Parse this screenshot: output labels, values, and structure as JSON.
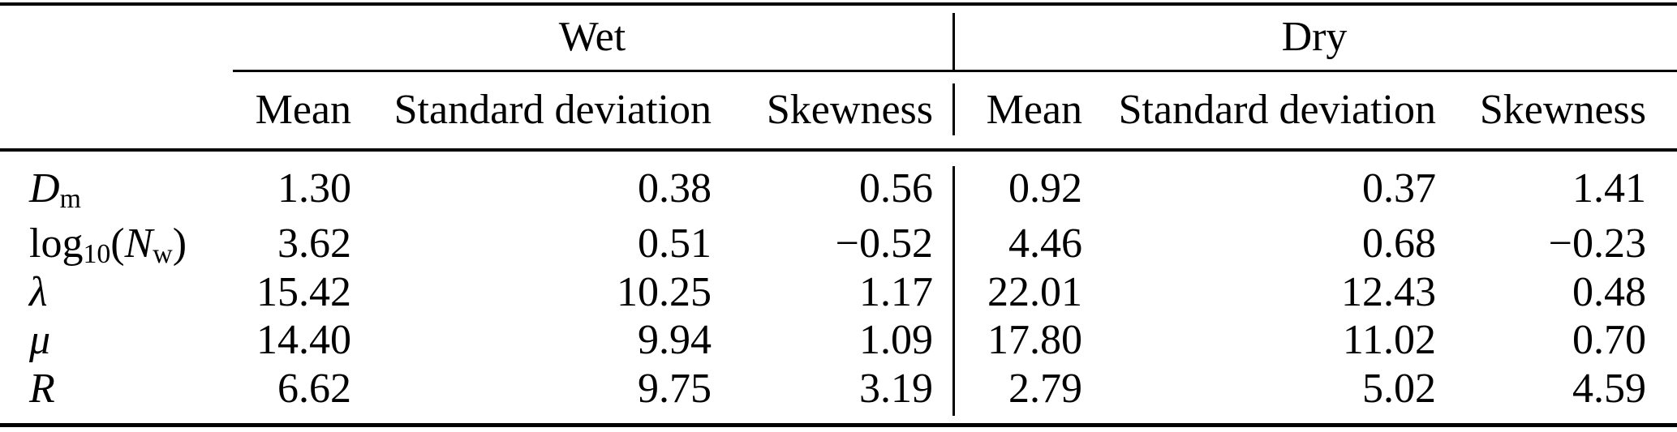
{
  "table": {
    "colors": {
      "text": "#000000",
      "rule": "#000000",
      "background": "#ffffff"
    },
    "group_headers": {
      "wet": "Wet",
      "dry": "Dry"
    },
    "col_headers": {
      "mean": "Mean",
      "std": "Standard deviation",
      "skew": "Skewness"
    },
    "rows": [
      {
        "label": [
          {
            "t": "D",
            "s": "i"
          },
          {
            "t": "m",
            "s": "sub"
          }
        ],
        "wet": {
          "mean": "1.30",
          "std": "0.38",
          "skew": "0.56"
        },
        "dry": {
          "mean": "0.92",
          "std": "0.37",
          "skew": "1.41"
        }
      },
      {
        "label": [
          {
            "t": "log",
            "s": "n"
          },
          {
            "t": "10",
            "s": "sub"
          },
          {
            "t": "(",
            "s": "n"
          },
          {
            "t": "N",
            "s": "i"
          },
          {
            "t": "w",
            "s": "sub"
          },
          {
            "t": ")",
            "s": "n"
          }
        ],
        "wet": {
          "mean": "3.62",
          "std": "0.51",
          "skew": "−0.52"
        },
        "dry": {
          "mean": "4.46",
          "std": "0.68",
          "skew": "−0.23"
        }
      },
      {
        "label": [
          {
            "t": "λ",
            "s": "i"
          }
        ],
        "wet": {
          "mean": "15.42",
          "std": "10.25",
          "skew": "1.17"
        },
        "dry": {
          "mean": "22.01",
          "std": "12.43",
          "skew": "0.48"
        }
      },
      {
        "label": [
          {
            "t": "μ",
            "s": "i"
          }
        ],
        "wet": {
          "mean": "14.40",
          "std": "9.94",
          "skew": "1.09"
        },
        "dry": {
          "mean": "17.80",
          "std": "11.02",
          "skew": "0.70"
        }
      },
      {
        "label": [
          {
            "t": "R",
            "s": "i"
          }
        ],
        "wet": {
          "mean": "6.62",
          "std": "9.75",
          "skew": "3.19"
        },
        "dry": {
          "mean": "2.79",
          "std": "5.02",
          "skew": "4.59"
        }
      }
    ]
  }
}
